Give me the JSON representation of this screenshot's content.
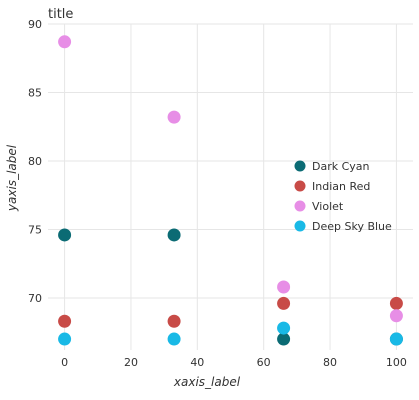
{
  "chart_data": {
    "type": "scatter",
    "title": "title",
    "xlabel": "xaxis_label",
    "ylabel": "yaxis_label",
    "xlim": [
      -5,
      105
    ],
    "ylim": [
      66.2,
      90
    ],
    "xticks": [
      0,
      20,
      40,
      60,
      80,
      100
    ],
    "yticks": [
      70,
      75,
      80,
      85,
      90
    ],
    "grid": true,
    "legend": "right",
    "series": [
      {
        "name": "Dark Cyan",
        "color": "#0b6b74",
        "x": [
          0,
          33,
          66,
          100
        ],
        "y": [
          74.6,
          74.6,
          67,
          67
        ]
      },
      {
        "name": "Indian Red",
        "color": "#c84b47",
        "x": [
          0,
          33,
          66,
          100
        ],
        "y": [
          68.3,
          68.3,
          69.6,
          69.6
        ]
      },
      {
        "name": "Violet",
        "color": "#e78ee6",
        "x": [
          0,
          33,
          66,
          100
        ],
        "y": [
          88.7,
          83.2,
          70.8,
          68.7
        ]
      },
      {
        "name": "Deep Sky Blue",
        "color": "#19b9e6",
        "x": [
          0,
          33,
          66,
          100
        ],
        "y": [
          67,
          67,
          67.8,
          67
        ]
      }
    ]
  }
}
